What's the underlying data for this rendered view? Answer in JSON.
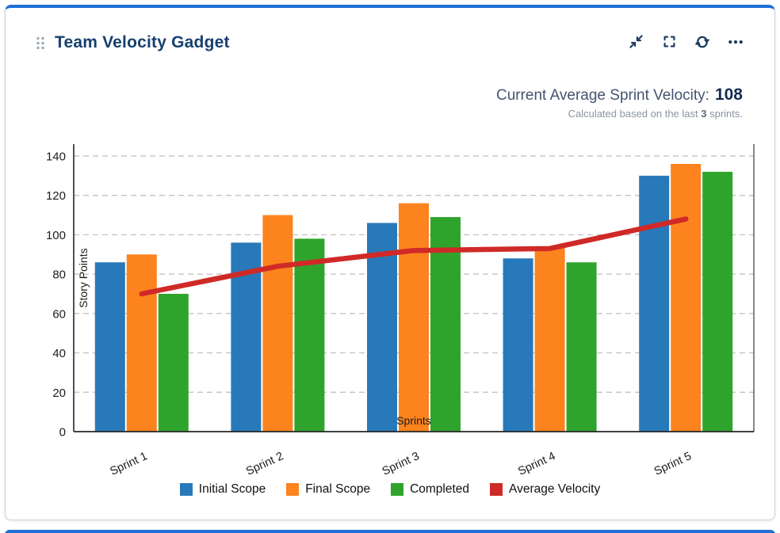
{
  "card": {
    "title": "Team Velocity Gadget",
    "icons": [
      "drag-handle",
      "minimize",
      "fullscreen",
      "refresh",
      "more"
    ],
    "summary": {
      "label": "Current Average Sprint Velocity:",
      "value": "108",
      "sub_prefix": "Calculated based on the last ",
      "sub_bold": "3",
      "sub_suffix": " sprints."
    }
  },
  "chart_data": {
    "type": "bar",
    "categories": [
      "Sprint 1",
      "Sprint 2",
      "Sprint 3",
      "Sprint 4",
      "Sprint 5"
    ],
    "series": [
      {
        "name": "Initial Scope",
        "color": "#2879b9",
        "values": [
          86,
          96,
          106,
          88,
          130
        ]
      },
      {
        "name": "Final Scope",
        "color": "#fc831e",
        "values": [
          90,
          110,
          116,
          94,
          136
        ]
      },
      {
        "name": "Completed",
        "color": "#2fa42d",
        "values": [
          70,
          98,
          109,
          86,
          132
        ]
      }
    ],
    "line_series": {
      "name": "Average Velocity",
      "color": "#cf2a27",
      "values": [
        70,
        84,
        92,
        93,
        108
      ]
    },
    "xlabel": "Sprints",
    "ylabel": "Story Points",
    "ylim": [
      0,
      140
    ],
    "ytick_step": 20,
    "grid": "dashed horizontal",
    "legend_position": "bottom"
  }
}
